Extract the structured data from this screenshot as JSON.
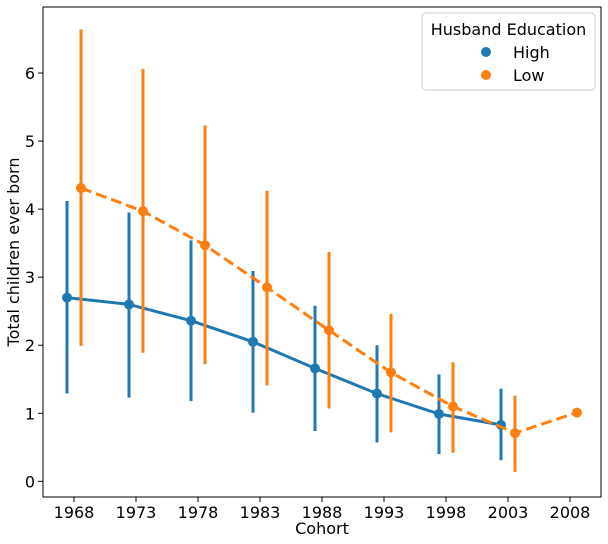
{
  "chart_data": {
    "type": "line",
    "xlabel": "Cohort",
    "ylabel": "Total children ever born",
    "categories": [
      "1968",
      "1973",
      "1978",
      "1983",
      "1988",
      "1993",
      "1998",
      "2003",
      "2008"
    ],
    "ylim": [
      -0.23,
      6.97
    ],
    "yticks": [
      0,
      1,
      2,
      3,
      4,
      5,
      6
    ],
    "grid": false,
    "legend": {
      "title": "Husband Education",
      "position": "top-right",
      "entries": [
        "High",
        "Low"
      ]
    },
    "series": [
      {
        "name": "High",
        "color": "#1f77b4",
        "linestyle": "solid",
        "dodge": -1,
        "values": [
          2.7,
          2.6,
          2.36,
          2.05,
          1.66,
          1.29,
          0.99,
          0.83,
          null
        ],
        "ci_low": [
          1.29,
          1.23,
          1.18,
          1.01,
          0.74,
          0.57,
          0.4,
          0.31,
          null
        ],
        "ci_high": [
          4.12,
          3.95,
          3.54,
          3.09,
          2.58,
          2.0,
          1.57,
          1.36,
          null
        ]
      },
      {
        "name": "Low",
        "color": "#ff7f0e",
        "linestyle": "dashed",
        "dodge": 1,
        "values": [
          4.31,
          3.97,
          3.47,
          2.85,
          2.22,
          1.6,
          1.1,
          0.71,
          1.01
        ],
        "ci_low": [
          1.99,
          1.89,
          1.72,
          1.41,
          1.07,
          0.72,
          0.42,
          0.14,
          1.01
        ],
        "ci_high": [
          6.64,
          6.06,
          5.23,
          4.27,
          3.37,
          2.46,
          1.75,
          1.26,
          1.01
        ]
      }
    ]
  }
}
